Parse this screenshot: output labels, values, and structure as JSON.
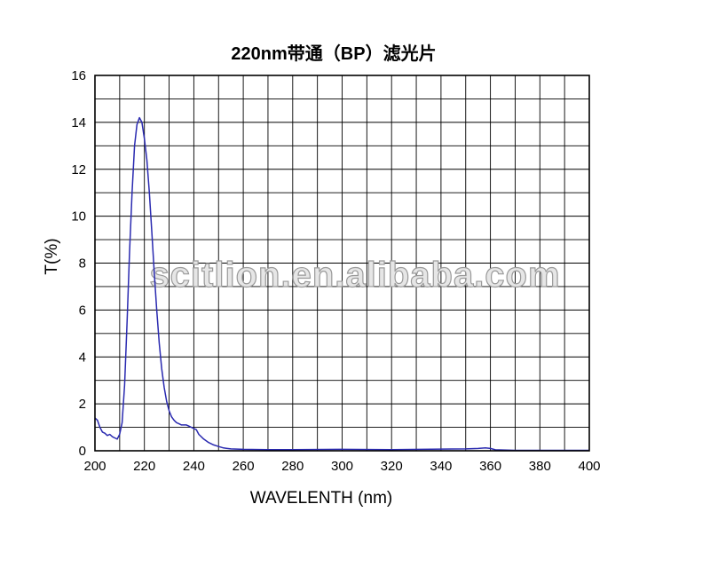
{
  "chart_data": {
    "type": "line",
    "title": "220nm带通（BP）滤光片",
    "xlabel": "WAVELENTH (nm)",
    "ylabel": "T(%)",
    "xlim": [
      200,
      400
    ],
    "ylim": [
      0,
      16
    ],
    "x_ticks": [
      200,
      220,
      240,
      260,
      280,
      300,
      320,
      340,
      360,
      380,
      400
    ],
    "y_ticks": [
      0,
      2,
      4,
      6,
      8,
      10,
      12,
      14,
      16
    ],
    "x_tick_labels": [
      "200",
      "220",
      "240",
      "260",
      "280",
      "300",
      "320",
      "340",
      "360",
      "380",
      "400"
    ],
    "y_tick_labels": [
      "0",
      "2",
      "4",
      "6",
      "8",
      "10",
      "12",
      "14",
      "16"
    ],
    "grid": true,
    "line_color": "#2a2ab0",
    "watermark": "scitlion.en.alibaba.com",
    "series": [
      {
        "x": [
          200,
          201,
          202,
          203,
          204,
          205,
          206,
          207,
          208,
          209,
          210,
          211,
          212,
          213,
          214,
          215,
          216,
          217,
          218,
          219,
          220,
          221,
          222,
          223,
          224,
          225,
          226,
          227,
          228,
          229,
          230,
          231,
          232,
          233,
          234,
          235,
          236,
          237,
          238,
          239,
          240,
          241,
          242,
          244,
          246,
          248,
          250,
          252,
          255,
          260,
          270,
          280,
          300,
          320,
          340,
          350,
          355,
          358,
          360,
          362,
          370,
          380,
          400
        ],
        "y": [
          1.4,
          1.3,
          1.0,
          0.8,
          0.75,
          0.65,
          0.7,
          0.6,
          0.55,
          0.5,
          0.7,
          1.2,
          2.8,
          5.5,
          8.5,
          11.0,
          13.0,
          13.9,
          14.2,
          14.0,
          13.3,
          12.4,
          11.0,
          9.3,
          7.6,
          6.0,
          4.6,
          3.5,
          2.7,
          2.1,
          1.7,
          1.45,
          1.3,
          1.2,
          1.15,
          1.1,
          1.1,
          1.1,
          1.05,
          1.0,
          0.95,
          0.9,
          0.7,
          0.5,
          0.35,
          0.25,
          0.18,
          0.12,
          0.08,
          0.06,
          0.05,
          0.05,
          0.06,
          0.05,
          0.07,
          0.08,
          0.1,
          0.12,
          0.1,
          0.04,
          0.02,
          0.02,
          0.02
        ]
      }
    ]
  }
}
